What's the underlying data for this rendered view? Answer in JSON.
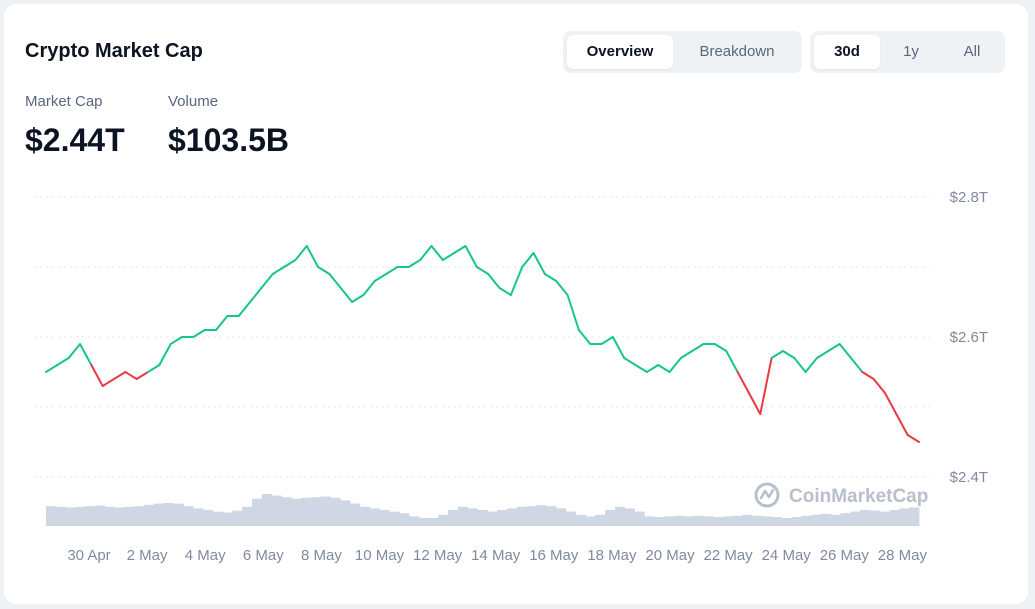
{
  "header": {
    "title": "Crypto Market Cap",
    "view_tabs": [
      {
        "label": "Overview",
        "active": true
      },
      {
        "label": "Breakdown",
        "active": false
      }
    ],
    "range_tabs": [
      {
        "label": "30d",
        "active": true
      },
      {
        "label": "1y",
        "active": false
      },
      {
        "label": "All",
        "active": false
      }
    ]
  },
  "stats": {
    "market_cap_label": "Market Cap",
    "market_cap_value": "$2.44T",
    "volume_label": "Volume",
    "volume_value": "$103.5B"
  },
  "watermark": "CoinMarketCap",
  "colors": {
    "up": "#16c784",
    "down": "#ea3943",
    "volume": "#cfd6e4",
    "grid": "#dfe3ea",
    "axis_text": "#808a9d"
  },
  "chart_data": {
    "type": "line",
    "title": "",
    "xlabel": "",
    "ylabel": "",
    "ylim": [
      2.35,
      2.8
    ],
    "y_ticks": [
      {
        "value": 2.4,
        "label": "$2.4T"
      },
      {
        "value": 2.6,
        "label": "$2.6T"
      },
      {
        "value": 2.8,
        "label": "$2.8T"
      }
    ],
    "x_ticks": [
      "30 Apr",
      "2 May",
      "4 May",
      "6 May",
      "8 May",
      "10 May",
      "12 May",
      "14 May",
      "16 May",
      "18 May",
      "20 May",
      "22 May",
      "24 May",
      "26 May",
      "28 May"
    ],
    "grid": true,
    "legend": "none",
    "color_rule": "green above baseline, red below baseline",
    "baseline": 2.55,
    "series": [
      {
        "values": [
          2.55,
          2.56,
          2.57,
          2.59,
          2.56,
          2.53,
          2.54,
          2.55,
          2.54,
          2.55,
          2.56,
          2.59,
          2.6,
          2.6,
          2.61,
          2.61,
          2.63,
          2.63,
          2.65,
          2.67,
          2.69,
          2.7,
          2.71,
          2.73,
          2.7,
          2.69,
          2.67,
          2.65,
          2.66,
          2.68,
          2.69,
          2.7,
          2.7,
          2.71,
          2.73,
          2.71,
          2.72,
          2.73,
          2.7,
          2.69,
          2.67,
          2.66,
          2.7,
          2.72,
          2.69,
          2.68,
          2.66,
          2.61,
          2.59,
          2.59,
          2.6,
          2.57,
          2.56,
          2.55,
          2.56,
          2.55,
          2.57,
          2.58,
          2.59,
          2.59,
          2.58,
          2.55,
          2.52,
          2.49,
          2.57,
          2.58,
          2.57,
          2.55,
          2.57,
          2.58,
          2.59,
          2.57,
          2.55,
          2.54,
          2.52,
          2.49,
          2.46,
          2.45
        ]
      }
    ],
    "volume": {
      "values": [
        0.62,
        0.6,
        0.58,
        0.6,
        0.62,
        0.64,
        0.6,
        0.58,
        0.6,
        0.62,
        0.66,
        0.7,
        0.72,
        0.7,
        0.62,
        0.55,
        0.5,
        0.45,
        0.42,
        0.48,
        0.6,
        0.85,
        1.0,
        0.95,
        0.9,
        0.85,
        0.88,
        0.9,
        0.92,
        0.88,
        0.8,
        0.7,
        0.6,
        0.55,
        0.5,
        0.45,
        0.4,
        0.3,
        0.25,
        0.25,
        0.35,
        0.5,
        0.6,
        0.55,
        0.5,
        0.45,
        0.5,
        0.55,
        0.6,
        0.62,
        0.65,
        0.62,
        0.55,
        0.45,
        0.35,
        0.3,
        0.35,
        0.5,
        0.6,
        0.55,
        0.45,
        0.3,
        0.28,
        0.3,
        0.32,
        0.3,
        0.32,
        0.3,
        0.28,
        0.3,
        0.32,
        0.35,
        0.32,
        0.3,
        0.28,
        0.25,
        0.28,
        0.32,
        0.35,
        0.38,
        0.35,
        0.4,
        0.45,
        0.5,
        0.48,
        0.45,
        0.5,
        0.55,
        0.58
      ]
    }
  }
}
